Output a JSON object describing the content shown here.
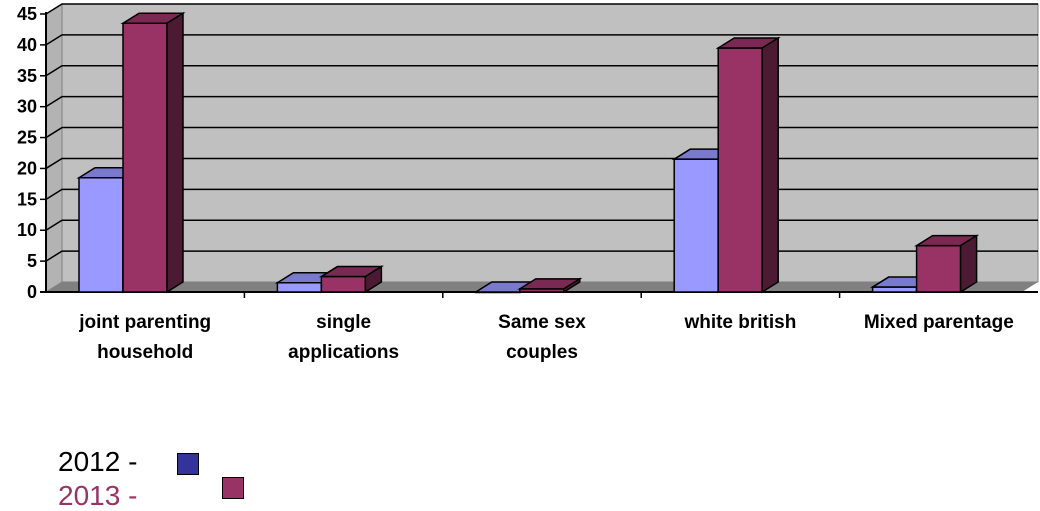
{
  "chart_data": {
    "type": "bar",
    "categories": [
      [
        "joint parenting",
        "household"
      ],
      [
        "single",
        "applications"
      ],
      [
        "Same sex",
        "couples"
      ],
      [
        "white british"
      ],
      [
        "Mixed parentage"
      ]
    ],
    "series": [
      {
        "name": "2012 -",
        "values": [
          18.5,
          1.5,
          0,
          21.5,
          0.8
        ],
        "color": "#9999ff",
        "side_color": "#4d4d80",
        "top_color": "#7a7acc",
        "legend_color": "#333399"
      },
      {
        "name": "2013 -",
        "values": [
          43.5,
          2.5,
          0.5,
          39.5,
          7.5
        ],
        "color": "#993366",
        "side_color": "#4d1a33",
        "top_color": "#7a2952",
        "legend_color": "#993366"
      }
    ],
    "yticks": [
      "0",
      "5",
      "10",
      "15",
      "20",
      "25",
      "30",
      "35",
      "40",
      "45"
    ],
    "ylim": [
      0,
      45
    ],
    "grid": true,
    "legend_position": "bottom-left",
    "plot_color": "#c0c0c0",
    "floor_color": "#808080"
  }
}
